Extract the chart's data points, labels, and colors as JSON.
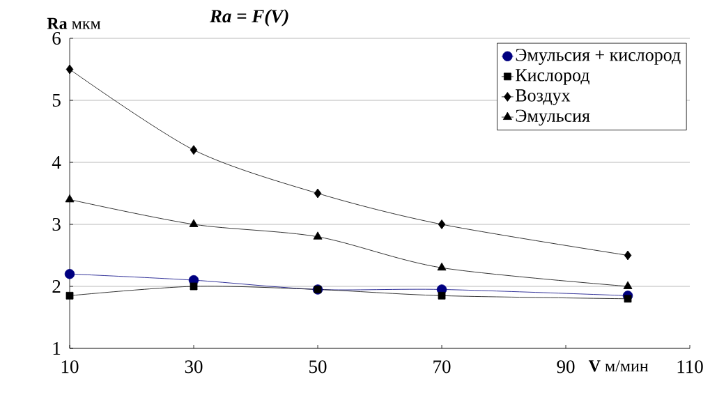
{
  "chart_data": {
    "type": "line",
    "title": "Ra = F(V)",
    "xlabel": "**V** м/мин",
    "ylabel": "**Ra** мкм",
    "x": [
      10,
      30,
      50,
      70,
      100
    ],
    "series": [
      {
        "name": "Эмульсия + кислород",
        "color": "#000080",
        "marker": "circle",
        "values": [
          2.2,
          2.1,
          1.95,
          1.95,
          1.85
        ]
      },
      {
        "name": "Кислород",
        "color": "#000000",
        "marker": "square",
        "values": [
          1.85,
          2.0,
          1.95,
          1.85,
          1.8
        ]
      },
      {
        "name": "Воздух",
        "color": "#000000",
        "marker": "diamond",
        "values": [
          5.5,
          4.2,
          3.5,
          3.0,
          2.5
        ]
      },
      {
        "name": "Эмульсия",
        "color": "#000000",
        "marker": "triangle",
        "values": [
          3.4,
          3.0,
          2.8,
          2.3,
          2.0
        ]
      }
    ],
    "xlim": [
      10,
      110
    ],
    "xticks": [
      10,
      30,
      50,
      70,
      90,
      110
    ],
    "ylim": [
      1,
      6
    ],
    "yticks": [
      1,
      2,
      3,
      4,
      5,
      6
    ],
    "grid": "y",
    "legend": "top right",
    "line_style": "solid"
  }
}
